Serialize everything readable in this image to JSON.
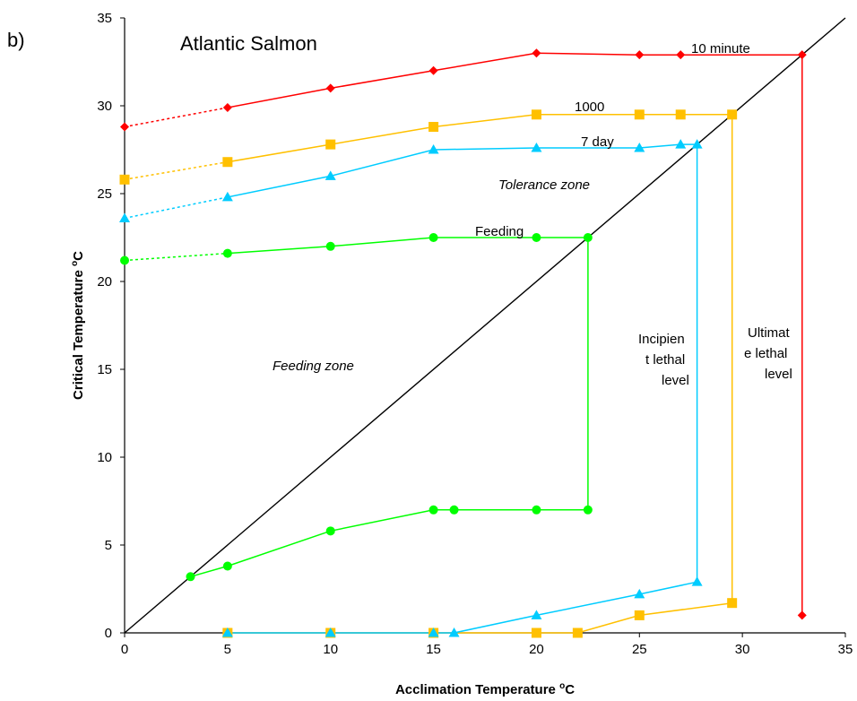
{
  "panel_label": "b)",
  "chart_data": {
    "type": "line",
    "title": "Atlantic Salmon",
    "xlabel": "Acclimation Temperature",
    "xlabel_unit_sup": "o",
    "xlabel_unit": "C",
    "ylabel": "Critical Temperature",
    "ylabel_unit_sup": "o",
    "ylabel_unit": "C",
    "xlim": [
      0,
      35
    ],
    "ylim": [
      0,
      35
    ],
    "xticks": [
      0,
      5,
      10,
      15,
      20,
      25,
      30,
      35
    ],
    "yticks": [
      0,
      5,
      10,
      15,
      20,
      25,
      30,
      35
    ],
    "grid": false,
    "legend": "none",
    "reference_line": {
      "x": [
        0,
        35
      ],
      "y": [
        0,
        35
      ],
      "color": "#000000"
    },
    "series": [
      {
        "key": "s10min",
        "color": "#ff0000",
        "marker": "diamond",
        "label": "10 minute",
        "upper": [
          [
            5,
            29.9
          ],
          [
            10,
            31.0
          ],
          [
            15,
            32.0
          ],
          [
            20,
            33.0
          ],
          [
            25,
            32.9
          ],
          [
            27,
            32.9
          ],
          [
            32.9,
            32.9
          ]
        ],
        "extrapolated": [
          [
            0,
            28.8
          ],
          [
            5,
            29.9
          ]
        ],
        "vertical": [
          [
            32.9,
            32.9
          ],
          [
            32.9,
            1.0
          ]
        ],
        "lower": [
          [
            32.9,
            1.0
          ]
        ]
      },
      {
        "key": "s1000",
        "color": "#ffc000",
        "marker": "square",
        "label": "1000",
        "upper": [
          [
            5,
            26.8
          ],
          [
            10,
            27.8
          ],
          [
            15,
            28.8
          ],
          [
            20,
            29.5
          ],
          [
            25,
            29.5
          ],
          [
            27,
            29.5
          ],
          [
            29.5,
            29.5
          ]
        ],
        "extrapolated": [
          [
            0,
            25.8
          ],
          [
            5,
            26.8
          ]
        ],
        "vertical": [
          [
            29.5,
            29.5
          ],
          [
            29.5,
            1.7
          ]
        ],
        "lower": [
          [
            5,
            0
          ],
          [
            10,
            0
          ],
          [
            15,
            0
          ],
          [
            20,
            0
          ],
          [
            22,
            0
          ],
          [
            25,
            1.0
          ],
          [
            29.5,
            1.7
          ]
        ]
      },
      {
        "key": "s7day",
        "color": "#00ccff",
        "marker": "triangle",
        "label": "7 day",
        "upper": [
          [
            5,
            24.8
          ],
          [
            10,
            26.0
          ],
          [
            15,
            27.5
          ],
          [
            20,
            27.6
          ],
          [
            25,
            27.6
          ],
          [
            27,
            27.8
          ],
          [
            27.8,
            27.8
          ]
        ],
        "extrapolated": [
          [
            0,
            23.6
          ],
          [
            5,
            24.8
          ]
        ],
        "vertical": [
          [
            27.8,
            27.8
          ],
          [
            27.8,
            2.9
          ]
        ],
        "lower": [
          [
            5,
            0
          ],
          [
            10,
            0
          ],
          [
            15,
            0
          ],
          [
            16,
            0
          ],
          [
            20,
            1.0
          ],
          [
            25,
            2.2
          ],
          [
            27.8,
            2.9
          ]
        ]
      },
      {
        "key": "sfeed",
        "color": "#00ff00",
        "marker": "circle",
        "label": "Feeding",
        "upper": [
          [
            5,
            21.6
          ],
          [
            10,
            22.0
          ],
          [
            15,
            22.5
          ],
          [
            20,
            22.5
          ],
          [
            22.5,
            22.5
          ]
        ],
        "extrapolated": [
          [
            0,
            21.2
          ],
          [
            5,
            21.6
          ]
        ],
        "vertical": [
          [
            22.5,
            22.5
          ],
          [
            22.5,
            7.0
          ]
        ],
        "lower": [
          [
            3.2,
            3.2
          ],
          [
            5,
            3.8
          ],
          [
            10,
            5.8
          ],
          [
            15,
            7.0
          ],
          [
            16,
            7.0
          ],
          [
            20,
            7.0
          ],
          [
            22.5,
            7.0
          ]
        ]
      }
    ],
    "annotations": {
      "tolerance_zone": "Tolerance zone",
      "feeding_zone": "Feeding zone",
      "incipient_1": "Incipien",
      "incipient_2": "t lethal",
      "incipient_3": "level",
      "ultimate_1": "Ultimat",
      "ultimate_2": "e lethal",
      "ultimate_3": "level"
    }
  }
}
